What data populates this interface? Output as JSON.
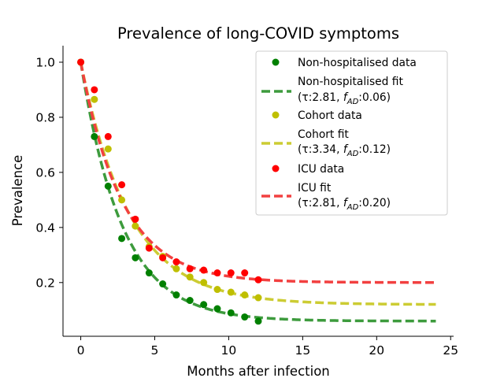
{
  "chart_data": {
    "type": "scatter",
    "title": "Prevalence of long-COVID symptoms",
    "xlabel": "Months after infection",
    "ylabel": "Prevalence",
    "xlim": [
      -1.2,
      25.2
    ],
    "ylim": [
      0.005,
      1.06
    ],
    "xticks": [
      0,
      5,
      10,
      15,
      20,
      25
    ],
    "xtick_labels": [
      "0",
      "5",
      "10",
      "15",
      "20",
      "25"
    ],
    "yticks": [
      0.2,
      0.4,
      0.6,
      0.8,
      1.0
    ],
    "ytick_labels": [
      "0.2",
      "0.4",
      "0.6",
      "0.8",
      "1.0"
    ],
    "grid": false,
    "legend_position": "top-right",
    "series": [
      {
        "name": "Non-hospitalised data",
        "kind": "scatter",
        "color": "#008000",
        "x": [
          0,
          0.92,
          1.85,
          2.77,
          3.69,
          4.62,
          5.54,
          6.46,
          7.38,
          8.31,
          9.23,
          10.15,
          11.08,
          12.0
        ],
        "y": [
          1.0,
          0.73,
          0.55,
          0.36,
          0.29,
          0.235,
          0.195,
          0.155,
          0.135,
          0.12,
          0.105,
          0.09,
          0.075,
          0.06
        ]
      },
      {
        "name_main": "Non-hospitalised fit",
        "kind": "fit",
        "color": "#3d9b3d",
        "tau": 2.81,
        "tau_label": "2.81",
        "f_ad": 0.06,
        "f_ad_label": "0.06",
        "x_range": [
          0,
          24
        ]
      },
      {
        "name": "Cohort data",
        "kind": "scatter",
        "color": "#bfbf00",
        "x": [
          0,
          0.92,
          1.85,
          2.77,
          3.69,
          4.62,
          5.54,
          6.46,
          7.38,
          8.31,
          9.23,
          10.15,
          11.08,
          12.0
        ],
        "y": [
          1.0,
          0.865,
          0.685,
          0.5,
          0.405,
          0.33,
          0.295,
          0.25,
          0.22,
          0.2,
          0.175,
          0.165,
          0.155,
          0.145
        ]
      },
      {
        "name_main": "Cohort fit",
        "kind": "fit",
        "color": "#cccc33",
        "tau": 3.34,
        "tau_label": "3.34",
        "f_ad": 0.12,
        "f_ad_label": "0.12",
        "x_range": [
          0,
          24
        ]
      },
      {
        "name": "ICU data",
        "kind": "scatter",
        "color": "#ff0000",
        "x": [
          0,
          0.92,
          1.85,
          2.77,
          3.69,
          4.62,
          5.54,
          6.46,
          7.38,
          8.31,
          9.23,
          10.15,
          11.08,
          12.0
        ],
        "y": [
          1.0,
          0.9,
          0.73,
          0.555,
          0.43,
          0.325,
          0.29,
          0.275,
          0.25,
          0.245,
          0.235,
          0.235,
          0.235,
          0.21
        ]
      },
      {
        "name_main": "ICU fit",
        "kind": "fit",
        "color": "#f24040",
        "tau": 2.81,
        "tau_label": "2.81",
        "f_ad": 0.2,
        "f_ad_label": "0.20",
        "x_range": [
          0,
          24
        ]
      }
    ]
  }
}
